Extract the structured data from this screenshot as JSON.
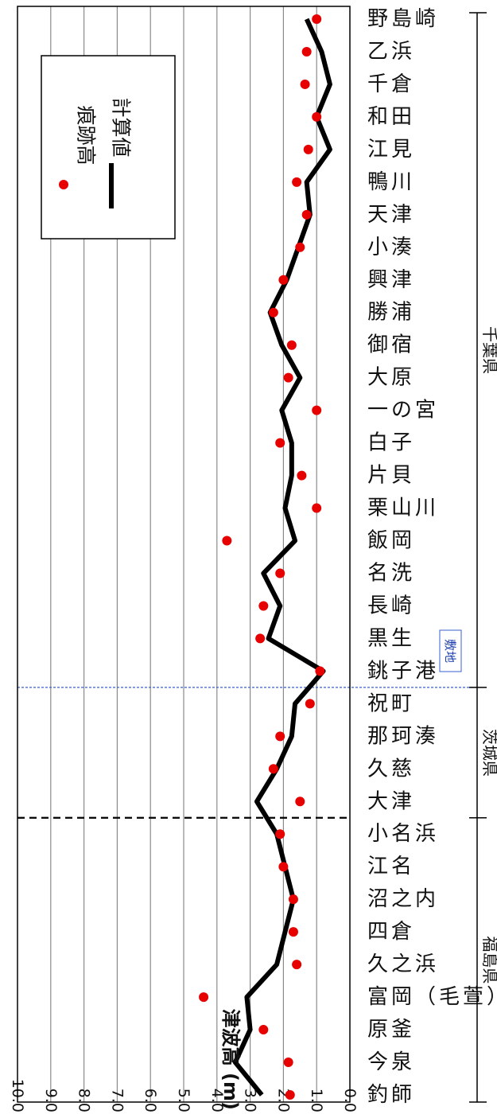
{
  "chart_data": {
    "type": "line",
    "ylabel": "津波高 (m)",
    "ylim": [
      0,
      10
    ],
    "ytick_labels": [
      "0.0",
      "1.0",
      "2.0",
      "3.0",
      "4.0",
      "5.0",
      "6.0",
      "7.0",
      "8.0",
      "9.0",
      "10.0"
    ],
    "grid": true,
    "legend_position": "top-right",
    "categories": [
      "釣師",
      "今泉",
      "原釜",
      "富岡（毛萱）",
      "久之浜",
      "四倉",
      "沼之内",
      "江名",
      "小名浜",
      "大津",
      "久慈",
      "那珂湊",
      "祝町",
      "銚子港",
      "黒生",
      "長崎",
      "名洗",
      "飯岡",
      "栗山川",
      "片貝",
      "白子",
      "一の宮",
      "大原",
      "御宿",
      "勝浦",
      "興津",
      "小湊",
      "天津",
      "鴨川",
      "江見",
      "和田",
      "千倉",
      "乙浜",
      "野島崎"
    ],
    "series": [
      {
        "name": "痕跡高",
        "style": "marker",
        "values": [
          1.8,
          1.85,
          2.6,
          4.4,
          1.6,
          1.7,
          1.7,
          2.0,
          2.1,
          1.5,
          2.3,
          2.1,
          1.2,
          0.9,
          2.7,
          2.6,
          2.1,
          3.7,
          1.0,
          1.45,
          2.1,
          1.0,
          1.85,
          1.75,
          2.3,
          2.0,
          1.5,
          1.3,
          1.6,
          1.25,
          1.0,
          1.35,
          1.3,
          1.0
        ]
      },
      {
        "name": "計算値",
        "style": "line",
        "values": [
          2.65,
          3.45,
          3.0,
          3.1,
          2.2,
          1.95,
          1.7,
          1.95,
          2.2,
          2.8,
          2.2,
          1.75,
          1.65,
          0.8,
          2.45,
          2.1,
          2.6,
          1.65,
          1.95,
          1.75,
          1.75,
          2.05,
          1.5,
          2.05,
          2.4,
          1.9,
          1.55,
          1.2,
          1.3,
          0.6,
          1.0,
          0.6,
          0.85,
          1.3
        ]
      }
    ],
    "prefectures": [
      {
        "name": "福島県",
        "from": 0,
        "to": 8
      },
      {
        "name": "茨城県",
        "from": 9,
        "to": 12
      },
      {
        "name": "千葉県",
        "from": 13,
        "to": 33
      }
    ],
    "annotation": "敷地",
    "legend": [
      "痕跡高",
      "計算値"
    ],
    "colors": {
      "marker": "#e60000",
      "line": "#000000",
      "site_line": "#3a5fd0",
      "grid": "#8a8a8a"
    }
  }
}
